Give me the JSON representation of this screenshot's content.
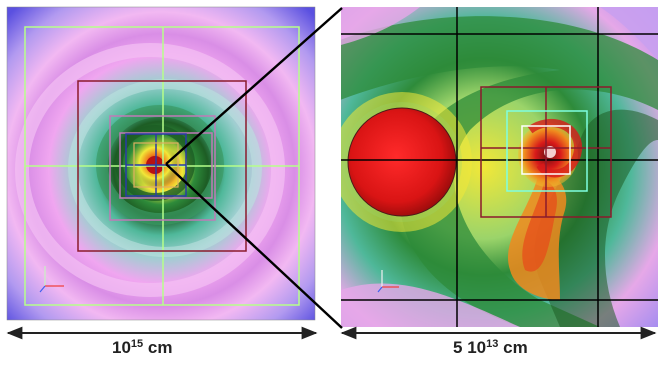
{
  "left_panel": {
    "scale_label": {
      "base": "10",
      "exponent": "15",
      "unit": "cm"
    }
  },
  "right_panel": {
    "scale_label": {
      "mantissa": "5",
      "base": "10",
      "exponent": "13",
      "unit": "cm"
    }
  },
  "colors": {
    "outer_violet": "#8a6ee8",
    "pink": "#f0a6f0",
    "teal": "#4fb89a",
    "green": "#2e8b3a",
    "dark_green": "#1d5c24",
    "yellow": "#f2e838",
    "orange": "#f08a1e",
    "red": "#d81a1a",
    "grid_light_green": "#b6ff8a",
    "grid_dark_red": "#8b1a2c",
    "grid_mauve": "#c07ab8",
    "grid_blue": "#2a3aa8",
    "grid_cyan": "#7fffe0",
    "grid_black": "#000000",
    "grid_white": "#ffffff"
  }
}
